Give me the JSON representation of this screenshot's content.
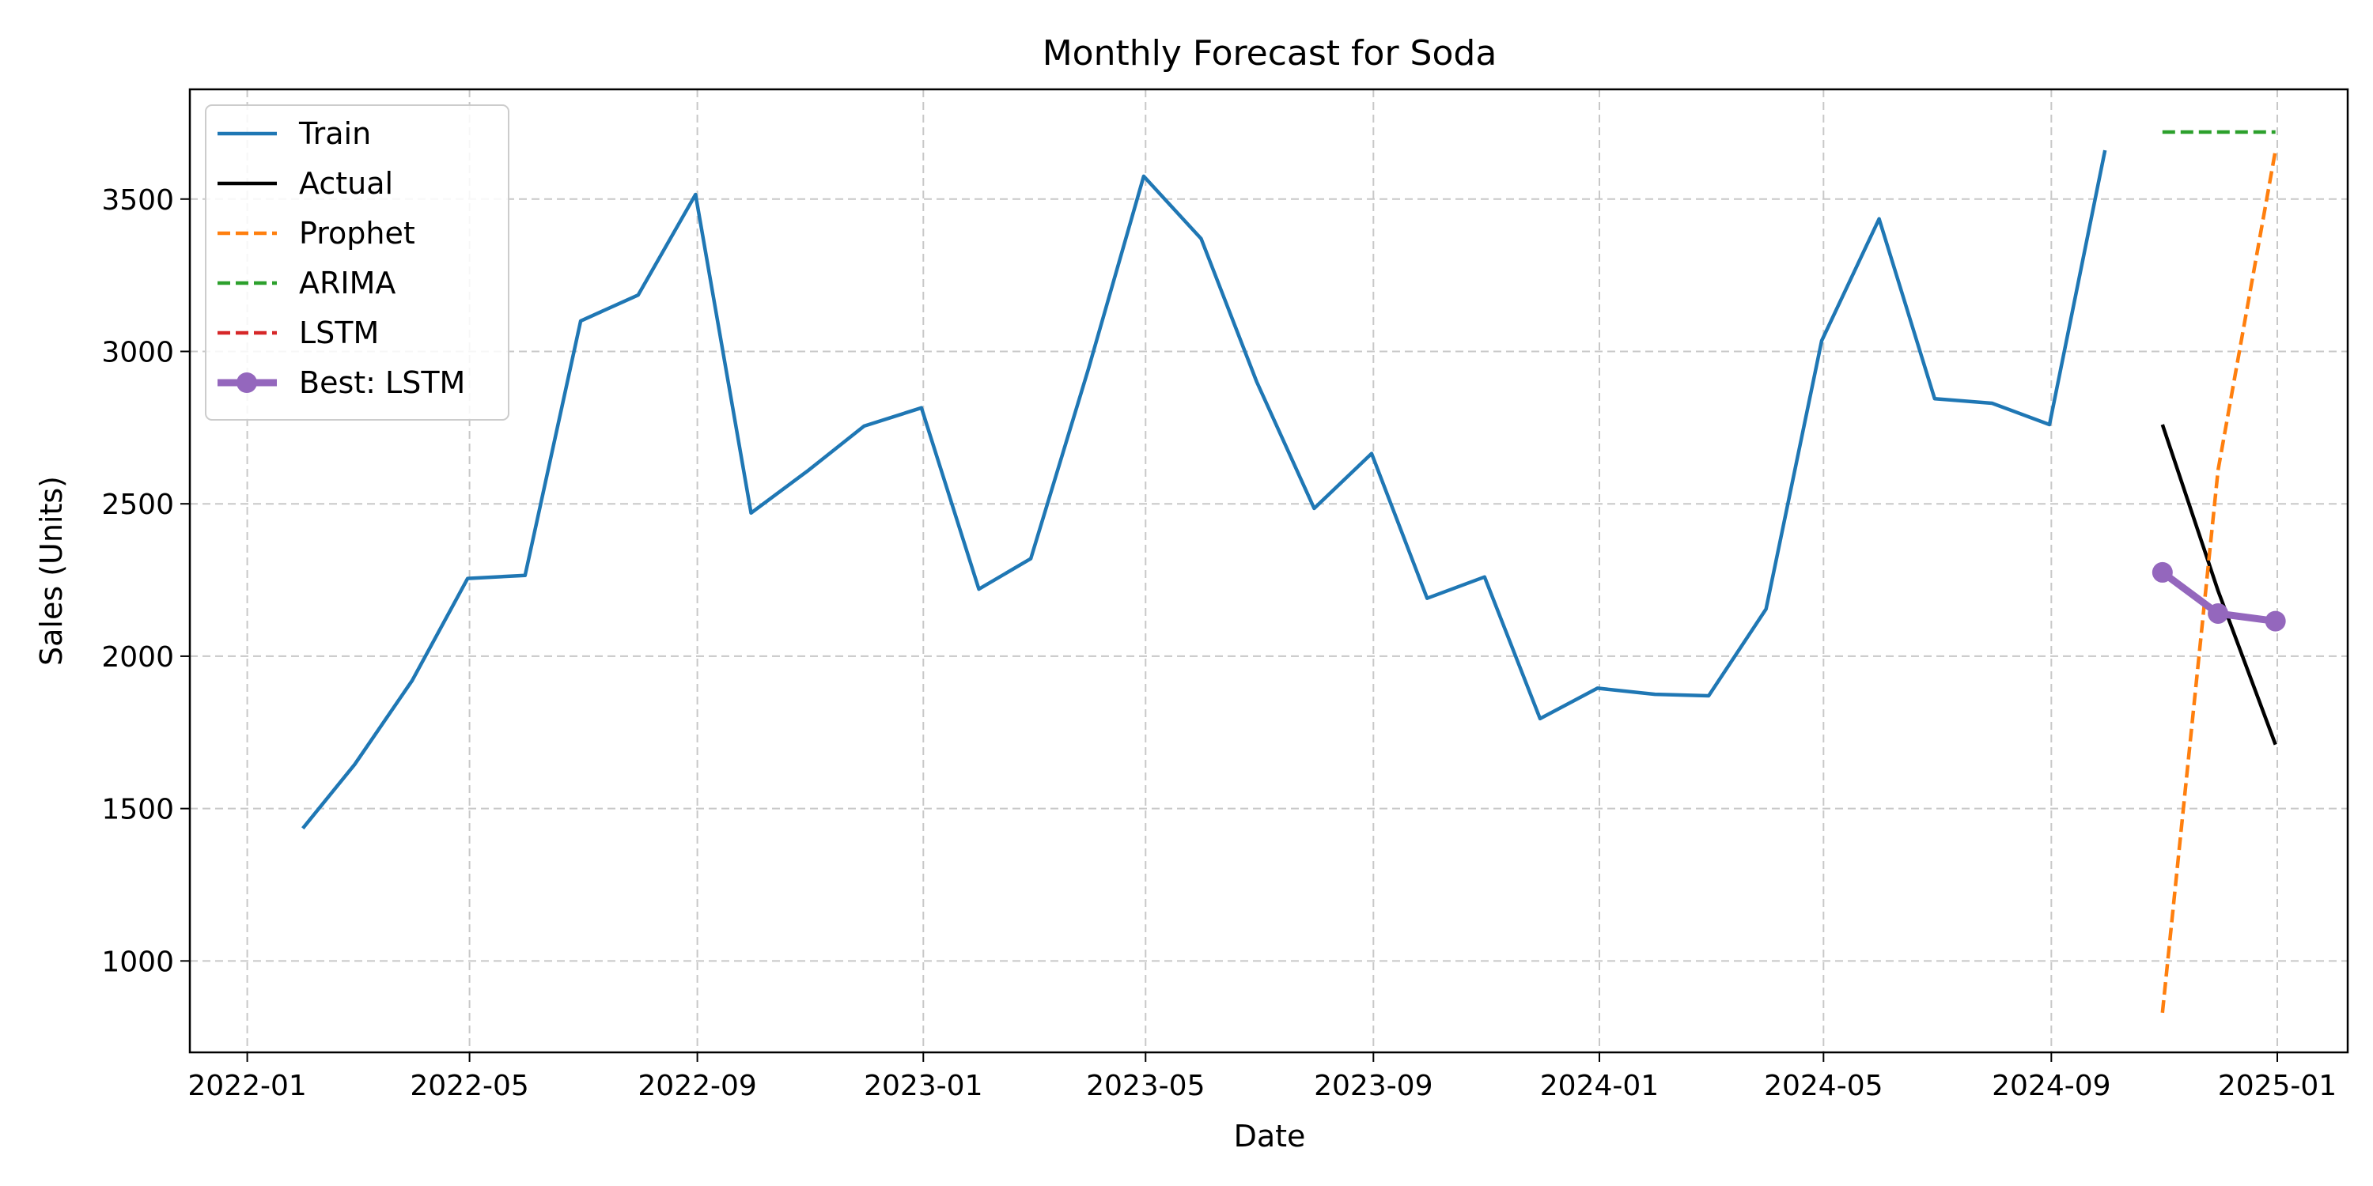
{
  "chart_data": {
    "type": "line",
    "title": "Monthly Forecast for Soda",
    "xlabel": "Date",
    "ylabel": "Sales (Units)",
    "x_type": "date",
    "xlim": [
      "2021-12-01",
      "2025-02-08"
    ],
    "ylim": [
      700,
      3860
    ],
    "x_ticks": [
      "2022-01",
      "2022-05",
      "2022-09",
      "2023-01",
      "2023-05",
      "2023-09",
      "2024-01",
      "2024-05",
      "2024-09",
      "2025-01"
    ],
    "y_ticks": [
      1000,
      1500,
      2000,
      2500,
      3000,
      3500
    ],
    "grid": true,
    "legend_position": "top-left",
    "series": [
      {
        "name": "Train",
        "color": "#1f77b4",
        "style": "solid",
        "x": [
          "2022-01-31",
          "2022-02-28",
          "2022-03-31",
          "2022-04-30",
          "2022-05-31",
          "2022-06-30",
          "2022-07-31",
          "2022-08-31",
          "2022-09-30",
          "2022-10-31",
          "2022-11-30",
          "2022-12-31",
          "2023-01-31",
          "2023-02-28",
          "2023-03-31",
          "2023-04-30",
          "2023-05-31",
          "2023-06-30",
          "2023-07-31",
          "2023-08-31",
          "2023-09-30",
          "2023-10-31",
          "2023-11-30",
          "2023-12-31",
          "2024-01-31",
          "2024-02-29",
          "2024-03-31",
          "2024-04-30",
          "2024-05-31",
          "2024-06-30",
          "2024-07-31",
          "2024-08-31",
          "2024-09-30"
        ],
        "values": [
          1435,
          1645,
          1920,
          2255,
          2265,
          3100,
          3185,
          3515,
          2470,
          2610,
          2755,
          2815,
          2220,
          2320,
          2940,
          3575,
          3370,
          2900,
          2485,
          2665,
          2190,
          2260,
          1795,
          1895,
          1875,
          1870,
          2155,
          3035,
          3435,
          2845,
          2830,
          2760,
          3660
        ]
      },
      {
        "name": "Actual",
        "color": "#000000",
        "style": "solid",
        "x": [
          "2024-10-31",
          "2024-11-30",
          "2024-12-31"
        ],
        "values": [
          2760,
          2215,
          1710
        ]
      },
      {
        "name": "Prophet",
        "color": "#ff7f0e",
        "style": "dashed",
        "x": [
          "2024-10-31",
          "2024-11-30",
          "2024-12-31"
        ],
        "values": [
          830,
          2610,
          3660
        ]
      },
      {
        "name": "ARIMA",
        "color": "#2ca02c",
        "style": "dashed",
        "x": [
          "2024-10-31",
          "2024-11-30",
          "2024-12-31"
        ],
        "values": [
          3720,
          3720,
          3720
        ]
      },
      {
        "name": "LSTM",
        "color": "#d62728",
        "style": "dashed",
        "x": [
          "2024-10-31",
          "2024-11-30",
          "2024-12-31"
        ],
        "values": [
          2275,
          2140,
          2115
        ]
      },
      {
        "name": "Best: LSTM",
        "color": "#9467bd",
        "style": "solid-marker",
        "x": [
          "2024-10-31",
          "2024-11-30",
          "2024-12-31"
        ],
        "values": [
          2275,
          2140,
          2115
        ]
      }
    ]
  }
}
